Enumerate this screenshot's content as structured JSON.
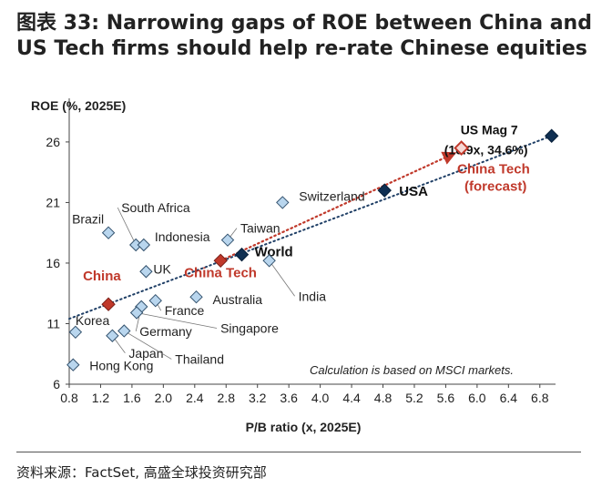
{
  "title": "图表 33: Narrowing gaps of ROE between China and US Tech firms should help re-rate Chinese equities",
  "source": "资料来源：FactSet, 高盛全球投资研究部",
  "chart_data": {
    "type": "scatter",
    "xlabel": "P/B ratio (x, 2025E)",
    "ylabel": "ROE (%, 2025E)",
    "xlim": [
      0.8,
      7.0
    ],
    "ylim": [
      6,
      29
    ],
    "xticks": [
      "0.8",
      "1.2",
      "1.6",
      "2.0",
      "2.4",
      "2.8",
      "3.2",
      "3.6",
      "4.0",
      "4.4",
      "4.8",
      "5.2",
      "5.6",
      "6.0",
      "6.4",
      "6.8"
    ],
    "yticks": [
      "6",
      "11",
      "16",
      "21",
      "26"
    ],
    "annotation": "Calculation is based on MSCI markets.",
    "colors": {
      "market": "#b9d6ee",
      "market_stroke": "#33526e",
      "highlight": "#c0392b",
      "dark": "#0f2f52",
      "trend": "#1f3f66",
      "arrow": "#c0392b"
    },
    "points": [
      {
        "name": "US Mag 7",
        "label": "US Mag 7",
        "sublabel": "(10.9x, 34.6%)",
        "x": 6.95,
        "y": 26.5,
        "style": "dark"
      },
      {
        "name": "China Tech (forecast)",
        "label": "China Tech",
        "sublabel": "(forecast)",
        "x": 5.8,
        "y": 25.5,
        "style": "forecast"
      },
      {
        "name": "USA",
        "label": "USA",
        "x": 4.82,
        "y": 22.0,
        "style": "dark"
      },
      {
        "name": "Switzerland",
        "label": "Switzerland",
        "x": 3.52,
        "y": 21.0,
        "style": "market"
      },
      {
        "name": "World",
        "label": "World",
        "x": 3.0,
        "y": 16.7,
        "style": "dark"
      },
      {
        "name": "China Tech",
        "label": "China Tech",
        "x": 2.73,
        "y": 16.2,
        "style": "highlight"
      },
      {
        "name": "Taiwan",
        "label": "Taiwan",
        "x": 2.82,
        "y": 17.9,
        "style": "market"
      },
      {
        "name": "India",
        "label": "India",
        "x": 3.35,
        "y": 16.2,
        "style": "market"
      },
      {
        "name": "South Africa",
        "label": "South Africa",
        "x": 1.65,
        "y": 17.5,
        "style": "market"
      },
      {
        "name": "Indonesia",
        "label": "Indonesia",
        "x": 1.75,
        "y": 17.5,
        "style": "market"
      },
      {
        "name": "Brazil",
        "label": "Brazil",
        "x": 1.3,
        "y": 18.5,
        "style": "market"
      },
      {
        "name": "UK",
        "label": "UK",
        "x": 1.78,
        "y": 15.3,
        "style": "market"
      },
      {
        "name": "Australia",
        "label": "Australia",
        "x": 2.42,
        "y": 13.2,
        "style": "market"
      },
      {
        "name": "France",
        "label": "France",
        "x": 1.9,
        "y": 12.9,
        "style": "market"
      },
      {
        "name": "Germany",
        "label": "Germany",
        "x": 1.72,
        "y": 12.4,
        "style": "market"
      },
      {
        "name": "Singapore",
        "label": "Singapore",
        "x": 1.66,
        "y": 11.9,
        "style": "market"
      },
      {
        "name": "China",
        "label": "China",
        "x": 1.3,
        "y": 12.6,
        "style": "highlight"
      },
      {
        "name": "Korea",
        "label": "Korea",
        "x": 0.88,
        "y": 10.3,
        "style": "market"
      },
      {
        "name": "Japan",
        "label": "Japan",
        "x": 1.35,
        "y": 10.0,
        "style": "market"
      },
      {
        "name": "Thailand",
        "label": "Thailand",
        "x": 1.5,
        "y": 10.4,
        "style": "market"
      },
      {
        "name": "Hong Kong",
        "label": "Hong Kong",
        "x": 0.85,
        "y": 7.6,
        "style": "market"
      }
    ],
    "trendline": {
      "x": [
        0.8,
        6.95
      ],
      "y": [
        11.4,
        26.5
      ]
    },
    "arrow": {
      "from": {
        "x": 2.73,
        "y": 16.2
      },
      "to": {
        "x": 5.8,
        "y": 25.5
      }
    }
  }
}
